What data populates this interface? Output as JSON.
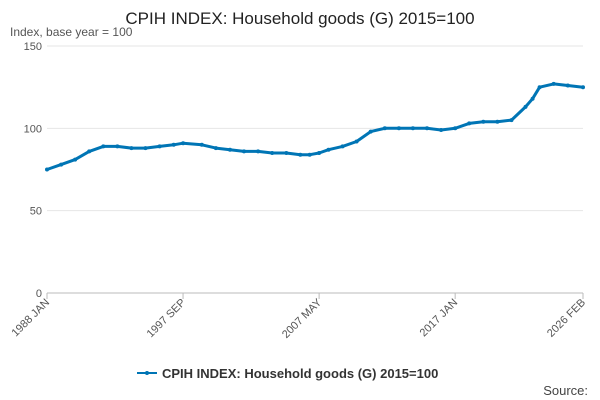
{
  "chart_data": {
    "type": "line",
    "title": "CPIH INDEX: Household goods (G) 2015=100",
    "subtitle": "Index, base year = 100",
    "source_label": "Source:",
    "x_tick_labels": [
      "1988 JAN",
      "1997 SEP",
      "2007 MAY",
      "2017 JAN",
      "2026 FEB"
    ],
    "x_tick_months": [
      0,
      116,
      232,
      348,
      457
    ],
    "y_ticks": [
      0,
      50,
      100,
      150
    ],
    "ylim": [
      0,
      150
    ],
    "grid": true,
    "legend_position": "bottom",
    "series": [
      {
        "name": "CPIH INDEX: Household goods (G) 2015=100",
        "color": "#0075b5",
        "x_month_index": [
          0,
          12,
          24,
          36,
          48,
          60,
          72,
          84,
          96,
          108,
          116,
          132,
          144,
          156,
          168,
          180,
          192,
          204,
          216,
          224,
          232,
          240,
          252,
          264,
          276,
          288,
          300,
          312,
          324,
          336,
          348,
          360,
          372,
          384,
          396,
          408,
          414,
          420,
          432,
          444,
          457
        ],
        "values": [
          75,
          78,
          81,
          86,
          89,
          89,
          88,
          88,
          89,
          90,
          91,
          90,
          88,
          87,
          86,
          86,
          85,
          85,
          84,
          84,
          85,
          87,
          89,
          92,
          98,
          100,
          100,
          100,
          100,
          99,
          100,
          103,
          104,
          104,
          105,
          113,
          118,
          125,
          127,
          126,
          125
        ]
      }
    ]
  }
}
